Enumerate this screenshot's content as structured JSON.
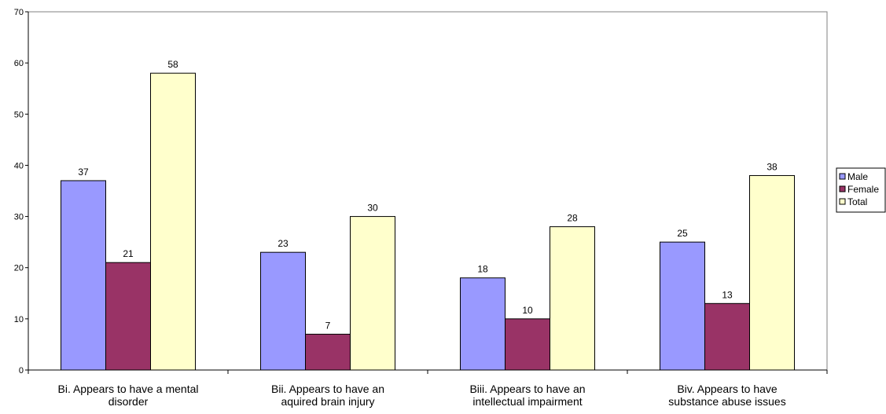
{
  "chart_data": {
    "type": "bar",
    "title": "",
    "xlabel": "",
    "ylabel": "",
    "ylim": [
      0,
      70
    ],
    "yticks": [
      0,
      10,
      20,
      30,
      40,
      50,
      60,
      70
    ],
    "grid": false,
    "legend_position": "right",
    "categories": [
      [
        "Bi. Appears to have a mental",
        "disorder"
      ],
      [
        "Bii. Appears to have an",
        "aquired brain injury"
      ],
      [
        "Biii. Appears to have an",
        "intellectual impairment"
      ],
      [
        "Biv. Appears to have",
        "substance abuse issues"
      ]
    ],
    "series": [
      {
        "name": "Male",
        "color": "#9999ff",
        "values": [
          37,
          23,
          18,
          25
        ]
      },
      {
        "name": "Female",
        "color": "#993366",
        "values": [
          21,
          7,
          10,
          13
        ]
      },
      {
        "name": "Total",
        "color": "#ffffcc",
        "values": [
          58,
          30,
          28,
          38
        ]
      }
    ]
  }
}
